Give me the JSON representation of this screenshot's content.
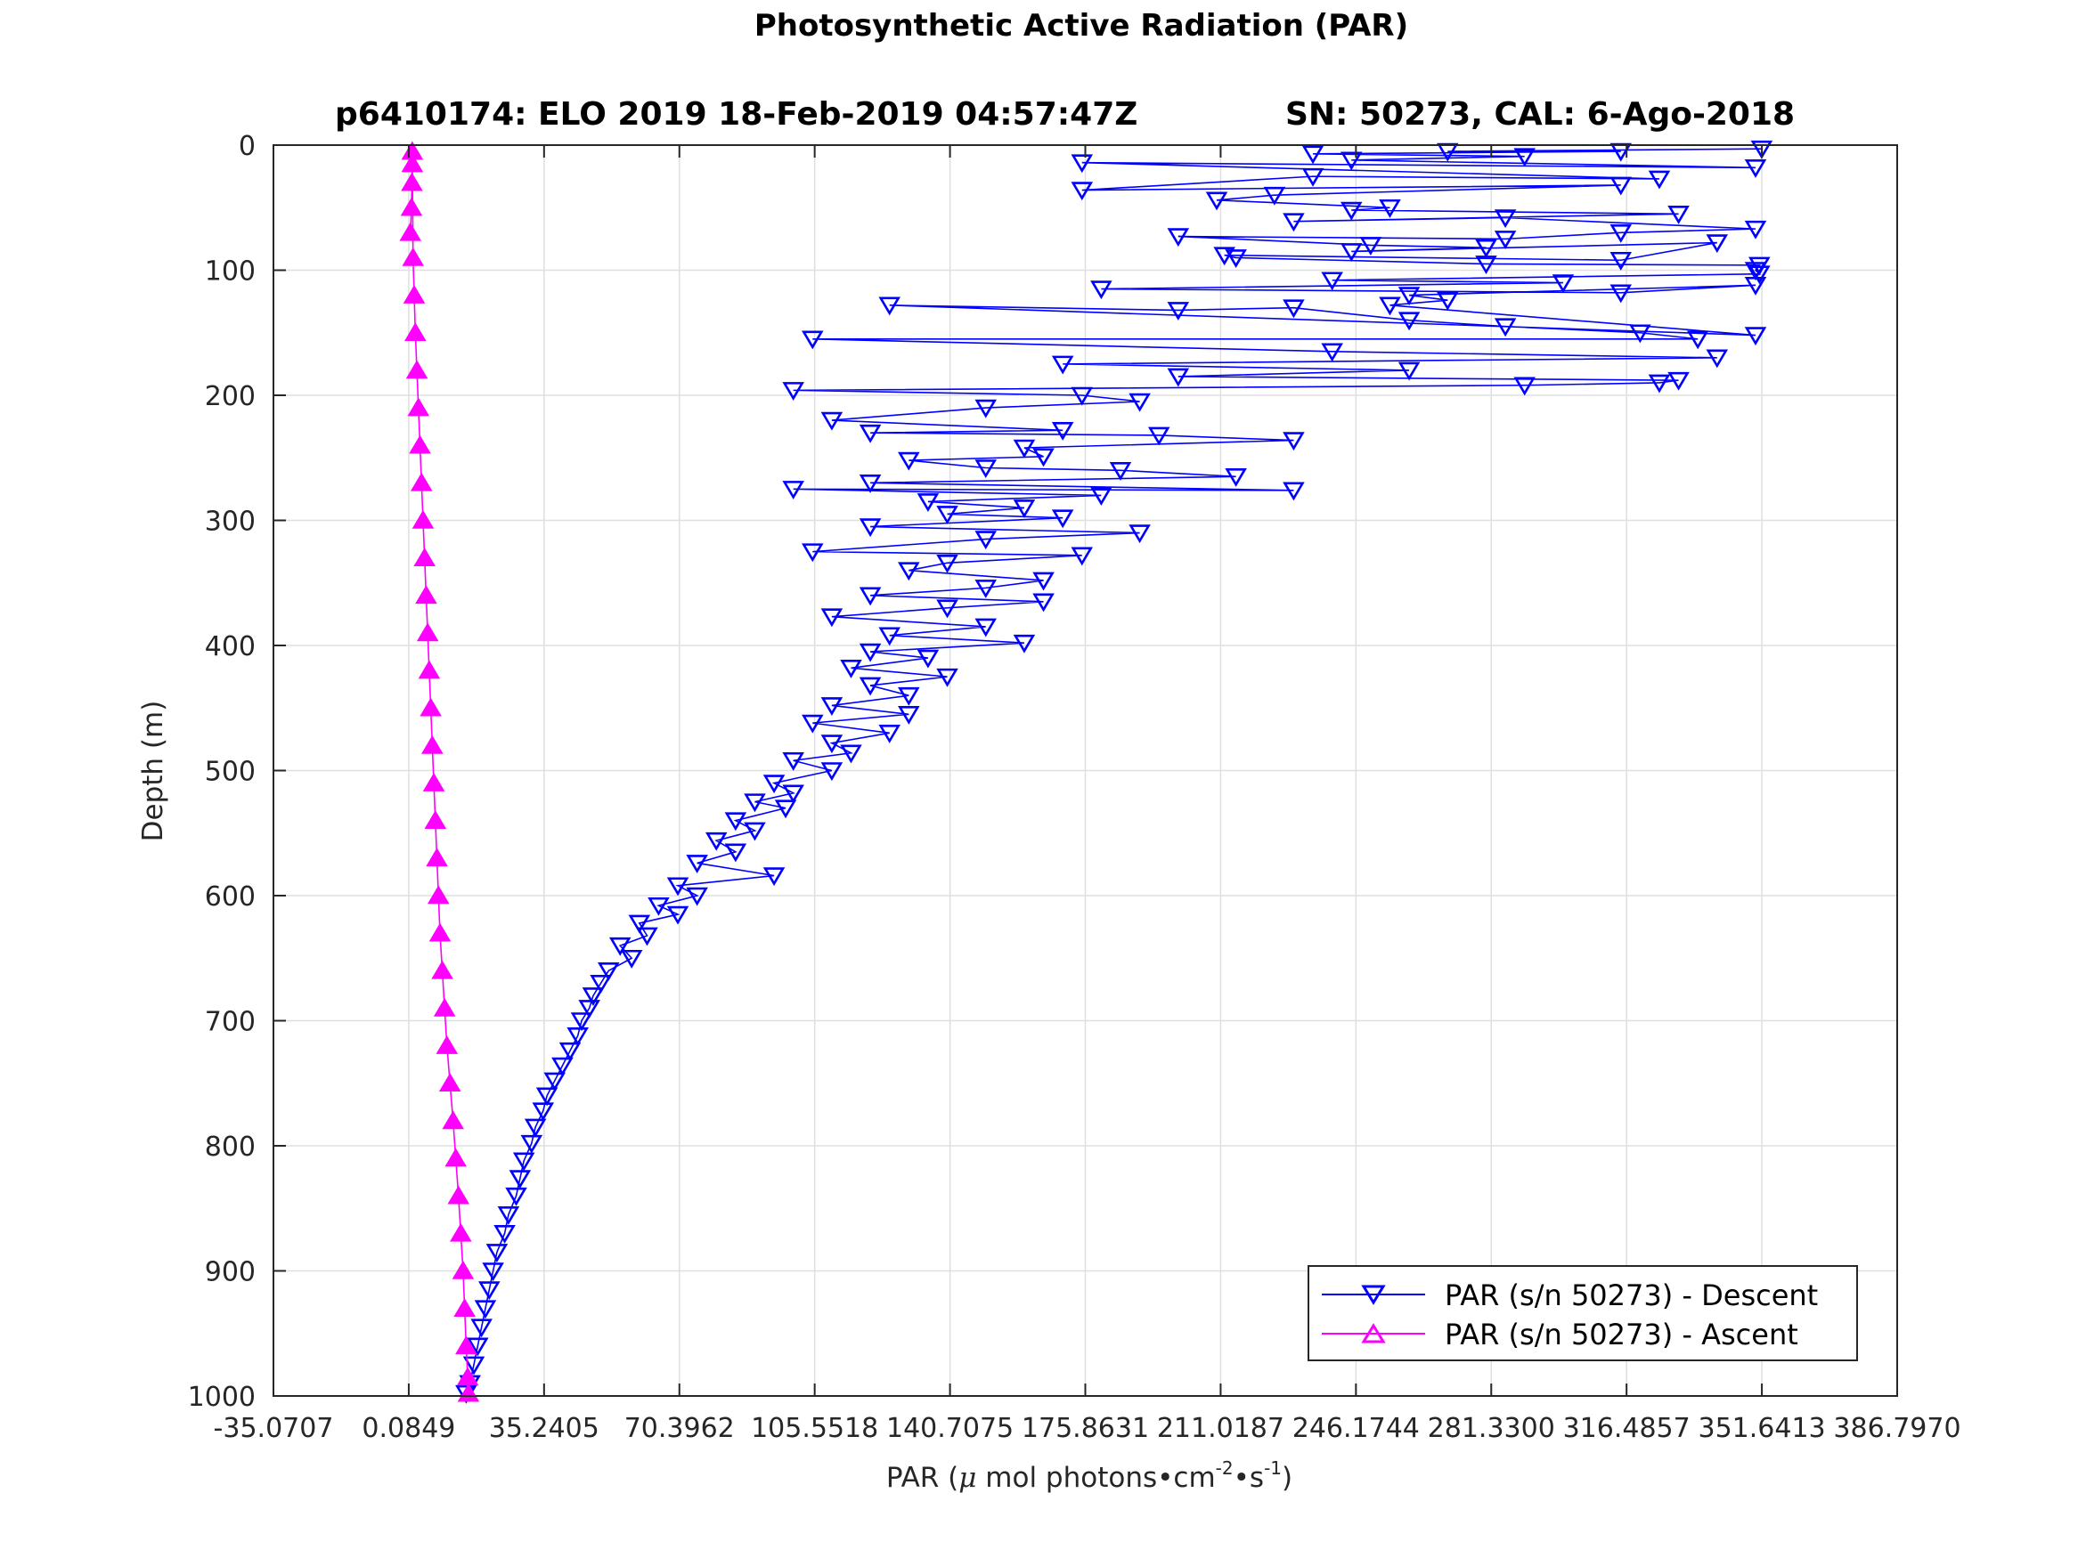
{
  "figure": {
    "title": "Photosynthetic Active Radiation (PAR)",
    "subtitle_left": "p6410174: ELO 2019 18-Feb-2019 04:57:47Z",
    "subtitle_right": "SN: 50273, CAL: 6-Ago-2018"
  },
  "chart_data": {
    "type": "line",
    "title": "Photosynthetic Active Radiation (PAR)",
    "xlabel_parts": {
      "prefix": "PAR (",
      "mu": "μ",
      "middle": " mol photons•cm",
      "exp1": "-2",
      "dot": "•s",
      "exp2": "-1",
      "suffix": ")"
    },
    "ylabel": "Depth (m)",
    "xlim": [
      -35.0707,
      386.797
    ],
    "ylim": [
      0,
      1000
    ],
    "y_reversed": true,
    "grid": true,
    "legend_position": "bottom-right",
    "xticks": [
      "-35.0707",
      "0.0849",
      "35.2405",
      "70.3962",
      "105.5518",
      "140.7075",
      "175.8631",
      "211.0187",
      "246.1744",
      "281.3300",
      "316.4857",
      "351.6413",
      "386.7970"
    ],
    "yticks": [
      "0",
      "100",
      "200",
      "300",
      "400",
      "500",
      "600",
      "700",
      "800",
      "900",
      "1000"
    ],
    "series": [
      {
        "name": "PAR (s/n 50273) - Descent",
        "color": "#0000ff",
        "marker": "triangle-down",
        "points": [
          [
            351.6,
            3
          ],
          [
            270,
            5
          ],
          [
            315,
            5
          ],
          [
            235,
            7
          ],
          [
            290,
            9
          ],
          [
            245,
            12
          ],
          [
            350,
            18
          ],
          [
            175,
            14
          ],
          [
            325,
            27
          ],
          [
            235,
            25
          ],
          [
            175,
            36
          ],
          [
            315,
            32
          ],
          [
            225,
            40
          ],
          [
            210,
            44
          ],
          [
            255,
            50
          ],
          [
            245,
            52
          ],
          [
            330,
            55
          ],
          [
            230,
            61
          ],
          [
            285,
            58
          ],
          [
            350,
            67
          ],
          [
            315,
            70
          ],
          [
            285,
            75
          ],
          [
            200,
            73
          ],
          [
            250,
            80
          ],
          [
            280,
            82
          ],
          [
            245,
            85
          ],
          [
            340,
            78
          ],
          [
            315,
            92
          ],
          [
            212,
            88
          ],
          [
            215,
            90
          ],
          [
            280,
            95
          ],
          [
            351,
            96
          ],
          [
            350,
            100
          ],
          [
            351,
            103
          ],
          [
            240,
            108
          ],
          [
            300,
            110
          ],
          [
            180,
            115
          ],
          [
            315,
            118
          ],
          [
            350,
            112
          ],
          [
            260,
            120
          ],
          [
            270,
            124
          ],
          [
            255,
            128
          ],
          [
            350,
            152
          ],
          [
            125,
            128
          ],
          [
            200,
            132
          ],
          [
            230,
            130
          ],
          [
            260,
            140
          ],
          [
            285,
            145
          ],
          [
            320,
            150
          ],
          [
            335,
            155
          ],
          [
            105,
            155
          ],
          [
            240,
            165
          ],
          [
            340,
            170
          ],
          [
            170,
            175
          ],
          [
            260,
            180
          ],
          [
            200,
            185
          ],
          [
            330,
            188
          ],
          [
            325,
            190
          ],
          [
            290,
            192
          ],
          [
            100,
            196
          ],
          [
            175,
            200
          ],
          [
            190,
            205
          ],
          [
            150,
            210
          ],
          [
            110,
            220
          ],
          [
            170,
            228
          ],
          [
            120,
            230
          ],
          [
            195,
            232
          ],
          [
            230,
            236
          ],
          [
            160,
            242
          ],
          [
            165,
            249
          ],
          [
            130,
            252
          ],
          [
            150,
            258
          ],
          [
            185,
            260
          ],
          [
            215,
            265
          ],
          [
            120,
            270
          ],
          [
            230,
            276
          ],
          [
            100,
            275
          ],
          [
            180,
            280
          ],
          [
            135,
            285
          ],
          [
            160,
            290
          ],
          [
            140,
            295
          ],
          [
            170,
            298
          ],
          [
            120,
            305
          ],
          [
            190,
            310
          ],
          [
            150,
            315
          ],
          [
            105,
            325
          ],
          [
            175,
            328
          ],
          [
            140,
            334
          ],
          [
            130,
            340
          ],
          [
            165,
            348
          ],
          [
            150,
            354
          ],
          [
            120,
            360
          ],
          [
            165,
            365
          ],
          [
            140,
            370
          ],
          [
            110,
            377
          ],
          [
            150,
            385
          ],
          [
            125,
            392
          ],
          [
            160,
            398
          ],
          [
            120,
            405
          ],
          [
            135,
            410
          ],
          [
            115,
            418
          ],
          [
            140,
            425
          ],
          [
            120,
            432
          ],
          [
            130,
            440
          ],
          [
            110,
            448
          ],
          [
            130,
            455
          ],
          [
            105,
            462
          ],
          [
            125,
            470
          ],
          [
            110,
            478
          ],
          [
            115,
            486
          ],
          [
            100,
            492
          ],
          [
            110,
            500
          ],
          [
            95,
            510
          ],
          [
            100,
            518
          ],
          [
            90,
            525
          ],
          [
            98,
            530
          ],
          [
            85,
            540
          ],
          [
            90,
            548
          ],
          [
            80,
            556
          ],
          [
            85,
            565
          ],
          [
            75,
            574
          ],
          [
            95,
            584
          ],
          [
            70,
            592
          ],
          [
            75,
            600
          ],
          [
            65,
            608
          ],
          [
            70,
            615
          ],
          [
            60,
            622
          ],
          [
            62,
            632
          ],
          [
            55,
            640
          ],
          [
            58,
            650
          ],
          [
            52,
            660
          ],
          [
            50,
            670
          ],
          [
            48,
            680
          ],
          [
            47,
            690
          ],
          [
            45,
            700
          ],
          [
            44,
            712
          ],
          [
            42,
            724
          ],
          [
            40,
            736
          ],
          [
            38,
            748
          ],
          [
            36,
            760
          ],
          [
            35,
            772
          ],
          [
            33,
            785
          ],
          [
            32,
            798
          ],
          [
            30,
            812
          ],
          [
            29,
            826
          ],
          [
            28,
            840
          ],
          [
            26,
            855
          ],
          [
            25,
            870
          ],
          [
            23,
            885
          ],
          [
            22,
            900
          ],
          [
            21,
            915
          ],
          [
            20,
            930
          ],
          [
            19,
            945
          ],
          [
            18,
            960
          ],
          [
            17,
            975
          ],
          [
            16,
            990
          ],
          [
            15,
            998
          ]
        ]
      },
      {
        "name": "PAR (s/n 50273) - Ascent",
        "color": "#ff00ff",
        "marker": "triangle-up",
        "points": [
          [
            0.5,
            70
          ],
          [
            0.8,
            50
          ],
          [
            0.9,
            30
          ],
          [
            1.0,
            15
          ],
          [
            1.0,
            5
          ],
          [
            1.2,
            90
          ],
          [
            1.5,
            120
          ],
          [
            1.8,
            150
          ],
          [
            2.2,
            180
          ],
          [
            2.6,
            210
          ],
          [
            3.0,
            240
          ],
          [
            3.4,
            270
          ],
          [
            3.8,
            300
          ],
          [
            4.2,
            330
          ],
          [
            4.6,
            360
          ],
          [
            5.0,
            390
          ],
          [
            5.4,
            420
          ],
          [
            5.8,
            450
          ],
          [
            6.2,
            480
          ],
          [
            6.6,
            510
          ],
          [
            7.0,
            540
          ],
          [
            7.4,
            570
          ],
          [
            7.8,
            600
          ],
          [
            8.2,
            630
          ],
          [
            8.8,
            660
          ],
          [
            9.4,
            690
          ],
          [
            10.0,
            720
          ],
          [
            10.8,
            750
          ],
          [
            11.6,
            780
          ],
          [
            12.3,
            810
          ],
          [
            13.0,
            840
          ],
          [
            13.6,
            870
          ],
          [
            14.2,
            900
          ],
          [
            14.6,
            930
          ],
          [
            15.0,
            960
          ],
          [
            15.4,
            985
          ],
          [
            15.6,
            998
          ]
        ]
      }
    ]
  }
}
